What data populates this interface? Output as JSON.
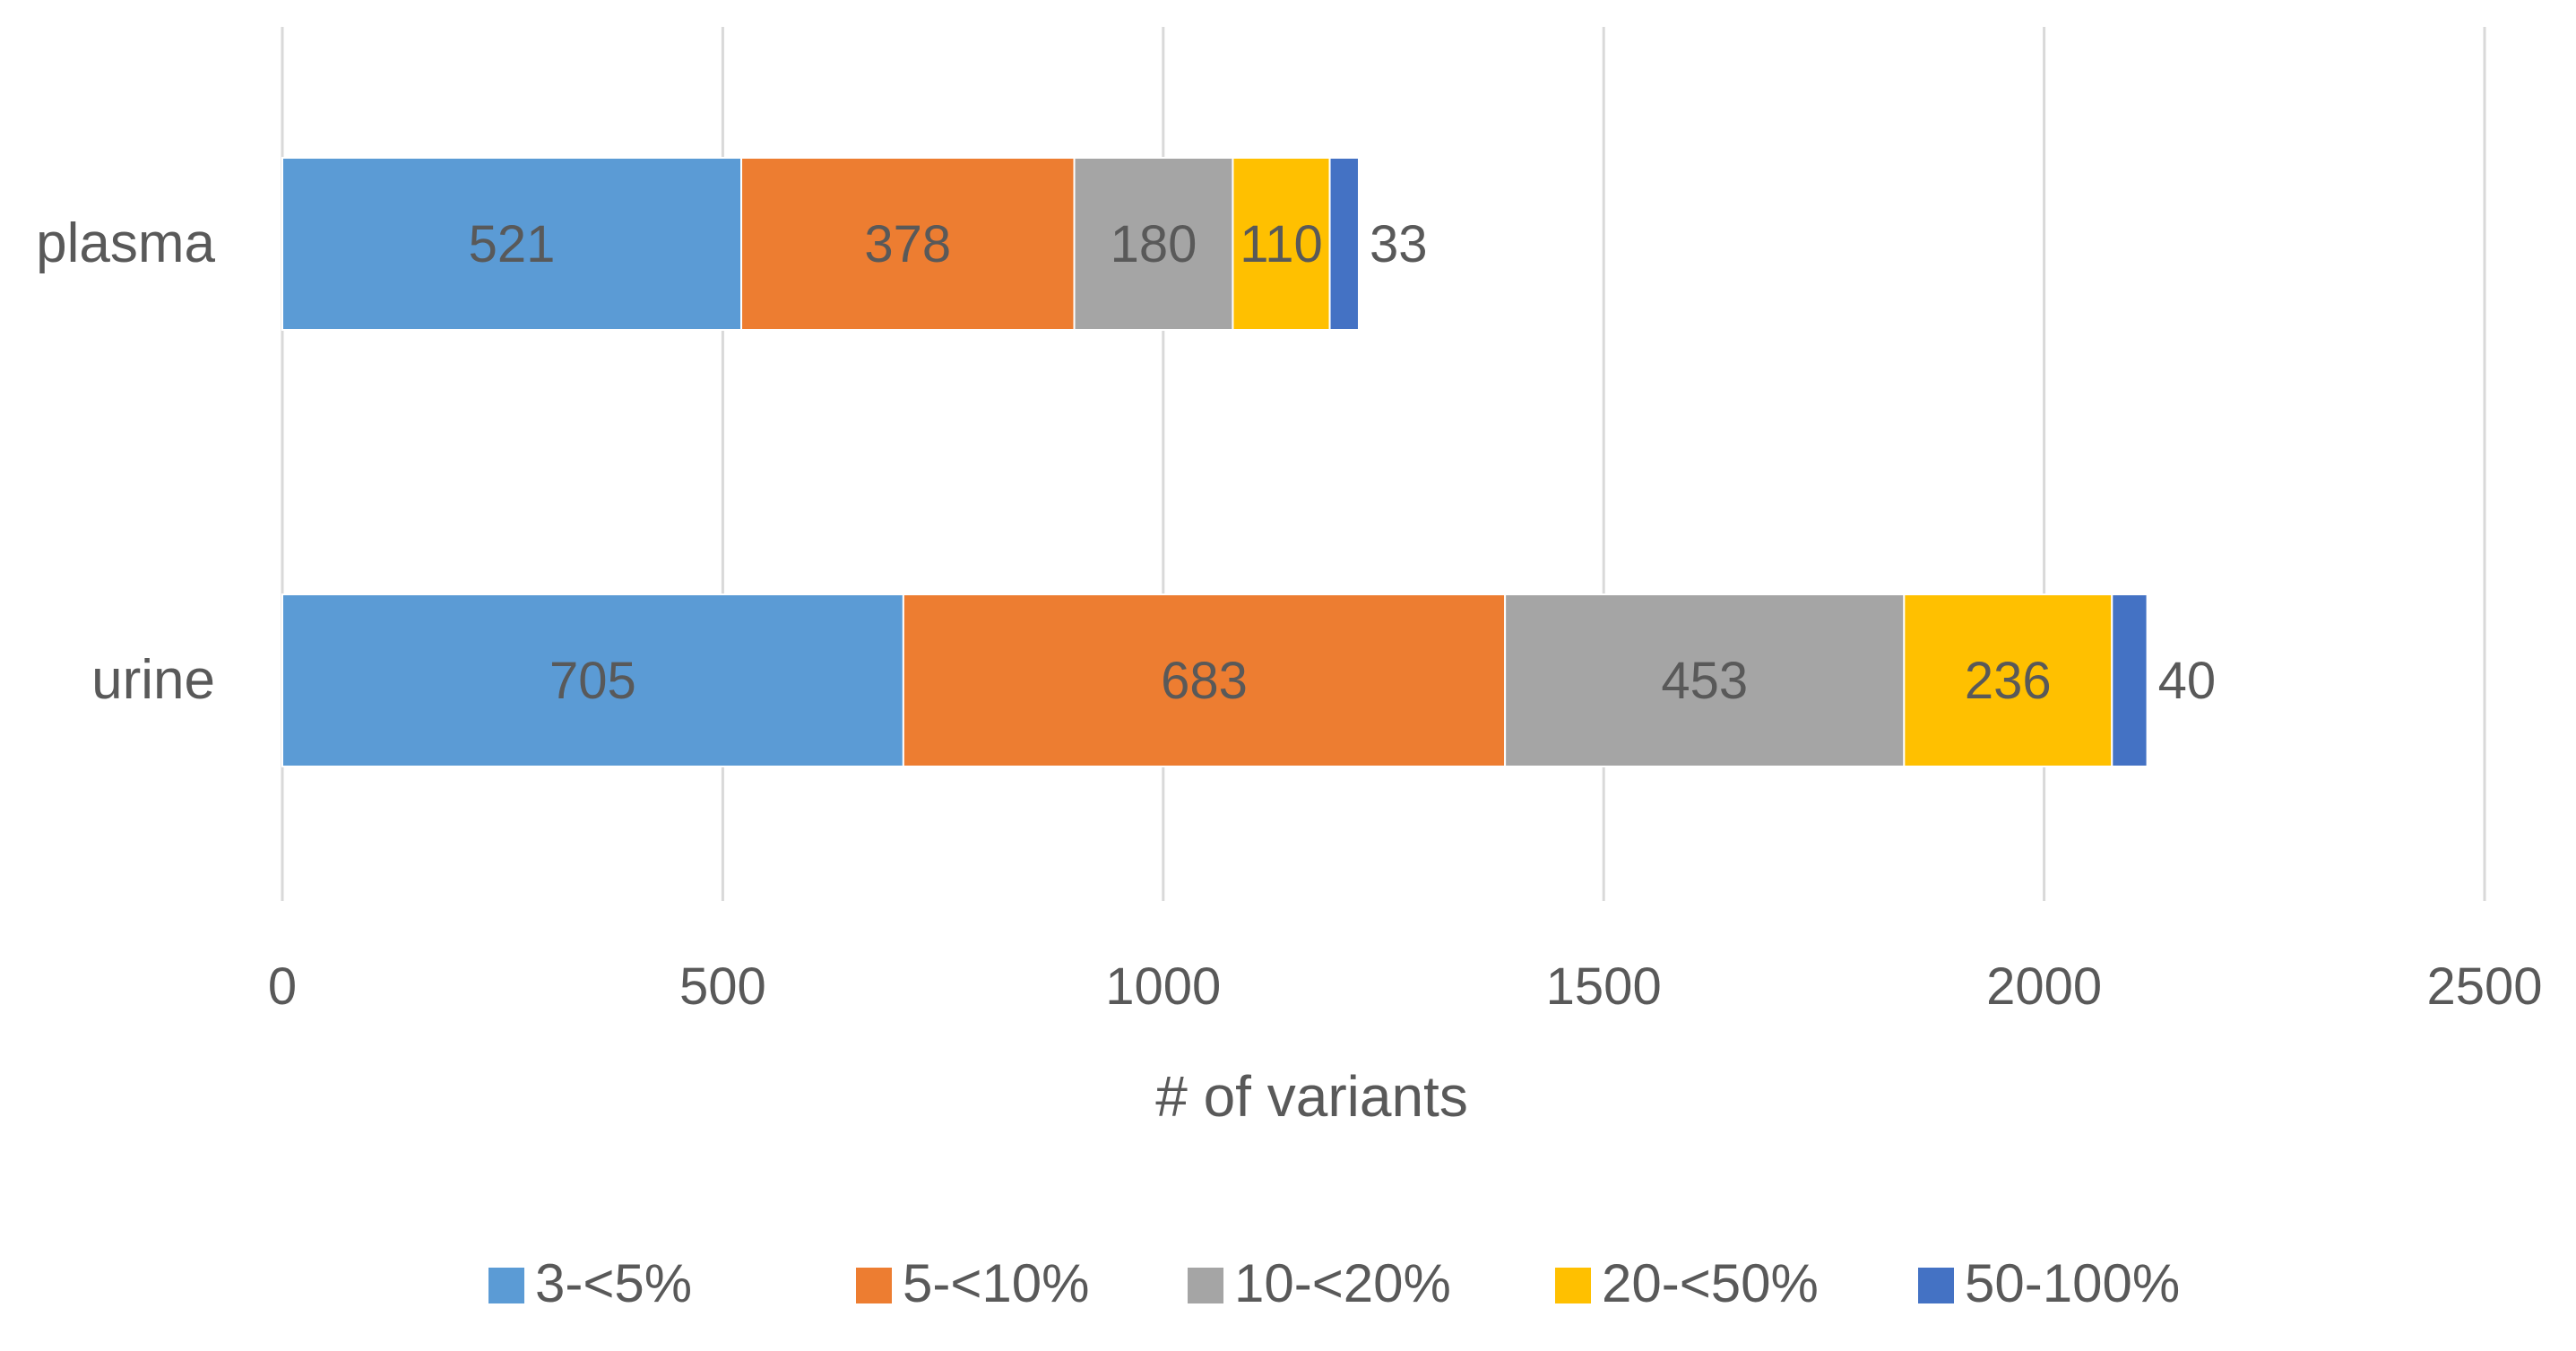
{
  "chart_data": {
    "type": "bar",
    "orientation": "horizontal",
    "stacked": true,
    "categories": [
      "plasma",
      "urine"
    ],
    "series": [
      {
        "name": "3-<5%",
        "values": [
          521,
          705
        ],
        "color": "#5B9BD5"
      },
      {
        "name": "5-<10%",
        "values": [
          378,
          683
        ],
        "color": "#ED7D31"
      },
      {
        "name": "10-<20%",
        "values": [
          180,
          453
        ],
        "color": "#A5A5A5"
      },
      {
        "name": "20-<50%",
        "values": [
          110,
          236
        ],
        "color": "#FFC000"
      },
      {
        "name": "50-100%",
        "values": [
          33,
          40
        ],
        "color": "#4472C4"
      }
    ],
    "xlabel": "# of variants",
    "ylabel": "",
    "title": "",
    "xlim": [
      0,
      2500
    ],
    "xticks": [
      0,
      500,
      1000,
      1500,
      2000,
      2500
    ],
    "grid": "vertical",
    "legend_position": "bottom",
    "data_labels": true
  }
}
